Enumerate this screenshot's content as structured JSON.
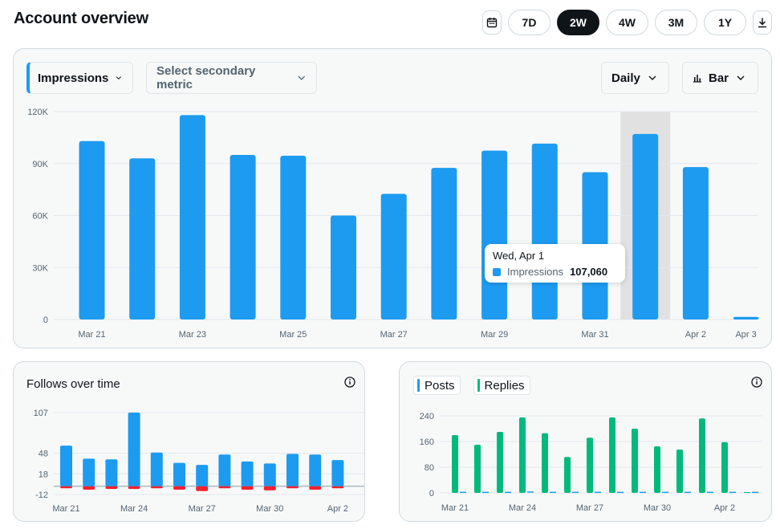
{
  "page": {
    "title": "Account overview"
  },
  "range": {
    "buttons": [
      "7D",
      "2W",
      "4W",
      "3M",
      "1Y"
    ],
    "active": "2W",
    "calendar_icon": "calendar-icon",
    "download_icon": "download-icon"
  },
  "main_chart": {
    "primary_metric": "Impressions",
    "secondary_placeholder": "Select secondary metric",
    "interval": "Daily",
    "chart_type_label": "Bar",
    "tooltip": {
      "date": "Wed, Apr 1",
      "label": "Impressions",
      "value": "107,060"
    }
  },
  "follows": {
    "title": "Follows over time"
  },
  "posts": {
    "legend": [
      "Posts",
      "Replies"
    ]
  },
  "colors": {
    "blue": "#1d9bf0",
    "green": "#00ba7c",
    "red": "#f4212e",
    "dark": "#0f1419",
    "grid": "#e1e8ed"
  },
  "chart_data": [
    {
      "type": "bar",
      "title": "Impressions",
      "categories": [
        "Mar 21",
        "Mar 22",
        "Mar 23",
        "Mar 24",
        "Mar 25",
        "Mar 26",
        "Mar 27",
        "Mar 28",
        "Mar 29",
        "Mar 30",
        "Mar 31",
        "Apr 1",
        "Apr 2",
        "Apr 3"
      ],
      "tick_labels": [
        "Mar 21",
        "",
        "Mar 23",
        "",
        "Mar 25",
        "",
        "Mar 27",
        "",
        "Mar 29",
        "",
        "Mar 31",
        "",
        "Apr 2",
        "Apr 3"
      ],
      "values": [
        103000,
        93000,
        118000,
        95000,
        94500,
        60000,
        72500,
        87500,
        97500,
        101500,
        85000,
        107060,
        88000,
        1500
      ],
      "highlight_index": 11,
      "yticks": [
        0,
        30000,
        60000,
        90000,
        120000
      ],
      "ytick_labels": [
        "0",
        "30K",
        "60K",
        "90K",
        "120K"
      ],
      "ylim": [
        0,
        120000
      ]
    },
    {
      "type": "bar",
      "title": "Follows over time",
      "categories": [
        "Mar 21",
        "Mar 22",
        "Mar 23",
        "Mar 24",
        "Mar 25",
        "Mar 26",
        "Mar 27",
        "Mar 28",
        "Mar 29",
        "Mar 30",
        "Mar 31",
        "Apr 1",
        "Apr 2"
      ],
      "tick_labels": [
        "Mar 21",
        "",
        "",
        "Mar 24",
        "",
        "",
        "Mar 27",
        "",
        "",
        "Mar 30",
        "",
        "",
        "Apr 2"
      ],
      "series": [
        {
          "name": "Follows",
          "values": [
            59,
            40,
            39,
            107,
            49,
            34,
            31,
            46,
            36,
            33,
            47,
            46,
            38
          ]
        },
        {
          "name": "Unfollows",
          "values": [
            -3,
            -5,
            -4,
            -4,
            -3,
            -5,
            -7,
            -3,
            -5,
            -6,
            -3,
            -5,
            -3
          ]
        }
      ],
      "yticks": [
        -12,
        18,
        48,
        107
      ],
      "ytick_labels": [
        "-12",
        "18",
        "48",
        "107"
      ],
      "ylim": [
        -12,
        107
      ]
    },
    {
      "type": "bar",
      "title": "Posts and Replies",
      "categories": [
        "Mar 21",
        "Mar 22",
        "Mar 23",
        "Mar 24",
        "Mar 25",
        "Mar 26",
        "Mar 27",
        "Mar 28",
        "Mar 29",
        "Mar 30",
        "Mar 31",
        "Apr 1",
        "Apr 2",
        "Apr 3"
      ],
      "tick_labels": [
        "Mar 21",
        "",
        "",
        "Mar 24",
        "",
        "",
        "Mar 27",
        "",
        "",
        "Mar 30",
        "",
        "",
        "Apr 2",
        ""
      ],
      "series": [
        {
          "name": "Posts",
          "values": [
            1,
            1,
            1,
            2,
            1,
            1,
            1,
            1,
            1,
            1,
            1,
            1,
            1,
            1
          ]
        },
        {
          "name": "Replies",
          "values": [
            180,
            150,
            190,
            235,
            186,
            112,
            172,
            235,
            200,
            145,
            135,
            232,
            158,
            0
          ]
        }
      ],
      "yticks": [
        0,
        80,
        160,
        240
      ],
      "ytick_labels": [
        "0",
        "80",
        "160",
        "240"
      ],
      "ylim": [
        0,
        240
      ]
    }
  ]
}
